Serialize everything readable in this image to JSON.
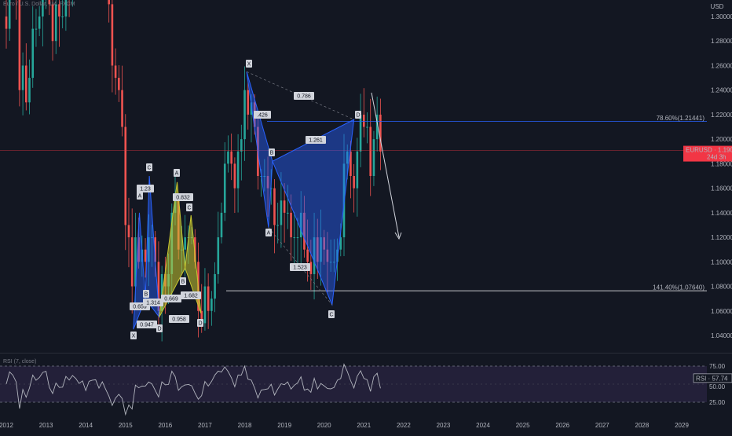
{
  "header": {
    "symbol_title": "Euro / U.S. Dollar, 1M, FXCM"
  },
  "price_axis": {
    "currency": "USD",
    "ticks": [
      "1.30000",
      "1.28000",
      "1.26000",
      "1.24000",
      "1.22000",
      "1.20000",
      "1.18000",
      "1.16000",
      "1.14000",
      "1.12000",
      "1.10000",
      "1.08000",
      "1.06000",
      "1.04000"
    ]
  },
  "time_axis": {
    "ticks": [
      "2012",
      "2013",
      "2014",
      "2015",
      "2016",
      "2017",
      "2018",
      "2019",
      "2020",
      "2021",
      "2022",
      "2023",
      "2024",
      "2025",
      "2026",
      "2027",
      "2028",
      "2029"
    ]
  },
  "price_tag": {
    "symbol": "EURUSD",
    "value": "1.19076",
    "countdown": "24d 3h",
    "color": "#f23645"
  },
  "fib_levels": [
    {
      "label": "78.60%(1.21441)",
      "price": 1.21441,
      "color": "#2962ff"
    },
    {
      "label": "141.40%(1.07640)",
      "price": 1.0764,
      "color": "#ffffff"
    }
  ],
  "patterns": {
    "big": {
      "points": [
        "X",
        "A",
        "B",
        "C",
        "D"
      ],
      "ratios": [
        "0.786",
        "1.261",
        "1.523"
      ],
      "extra_label": ".426",
      "color": "#2962ff"
    },
    "small_blue": {
      "points": [
        "X",
        "A",
        "B",
        "C",
        "D"
      ],
      "ratios": [
        "1.23",
        "0.659",
        "0.947",
        "1.314"
      ],
      "color": "#2962ff"
    },
    "yellow": {
      "points": [
        "A",
        "B",
        "C",
        "D"
      ],
      "ratios": [
        "0.832",
        "0.669",
        "1.682",
        "0.958"
      ],
      "color": "#c8c830"
    }
  },
  "rsi": {
    "title": "RSI (7, close)",
    "badge_label": "RSI",
    "badge_value": "57.74",
    "upper": "75.00",
    "lower": "25.00",
    "mid": "50.00",
    "color": "#b2b5be",
    "fill_color": "#7e57c2"
  },
  "chart_data": {
    "type": "candlestick",
    "y_range": [
      1.035,
      1.305
    ],
    "x_range": [
      2011.85,
      2029.5
    ],
    "rsi_range": [
      0,
      100
    ],
    "up_color": "#26a69a",
    "down_color": "#ef5350",
    "monthly_closes_est": [
      {
        "year": 2012,
        "values": [
          1.29,
          1.33,
          1.33,
          1.32,
          1.24,
          1.26,
          1.23,
          1.25,
          1.29,
          1.29,
          1.3,
          1.32
        ]
      },
      {
        "year": 2013,
        "values": [
          1.35,
          1.31,
          1.28,
          1.31,
          1.3,
          1.3,
          1.33,
          1.32,
          1.35,
          1.36,
          1.36,
          1.37
        ]
      },
      {
        "year": 2014,
        "values": [
          1.35,
          1.38,
          1.38,
          1.38,
          1.36,
          1.37,
          1.34,
          1.31,
          1.26,
          1.25,
          1.24,
          1.21
        ]
      },
      {
        "year": 2015,
        "values": [
          1.13,
          1.12,
          1.08,
          1.12,
          1.1,
          1.11,
          1.1,
          1.12,
          1.12,
          1.1,
          1.06,
          1.09
        ]
      },
      {
        "year": 2016,
        "values": [
          1.08,
          1.09,
          1.14,
          1.15,
          1.11,
          1.11,
          1.12,
          1.12,
          1.12,
          1.1,
          1.06,
          1.05
        ]
      },
      {
        "year": 2017,
        "values": [
          1.08,
          1.06,
          1.07,
          1.09,
          1.12,
          1.14,
          1.18,
          1.19,
          1.18,
          1.16,
          1.19,
          1.2
        ]
      },
      {
        "year": 2018,
        "values": [
          1.24,
          1.22,
          1.23,
          1.21,
          1.17,
          1.17,
          1.17,
          1.16,
          1.16,
          1.13,
          1.13,
          1.15
        ]
      },
      {
        "year": 2019,
        "values": [
          1.14,
          1.14,
          1.12,
          1.12,
          1.12,
          1.14,
          1.11,
          1.1,
          1.09,
          1.12,
          1.1,
          1.12
        ]
      },
      {
        "year": 2020,
        "values": [
          1.11,
          1.1,
          1.1,
          1.1,
          1.11,
          1.12,
          1.18,
          1.19,
          1.17,
          1.16,
          1.19,
          1.22
        ]
      },
      {
        "year": 2021,
        "values": [
          1.21,
          1.21,
          1.17,
          1.2,
          1.22,
          1.19
        ]
      }
    ]
  }
}
